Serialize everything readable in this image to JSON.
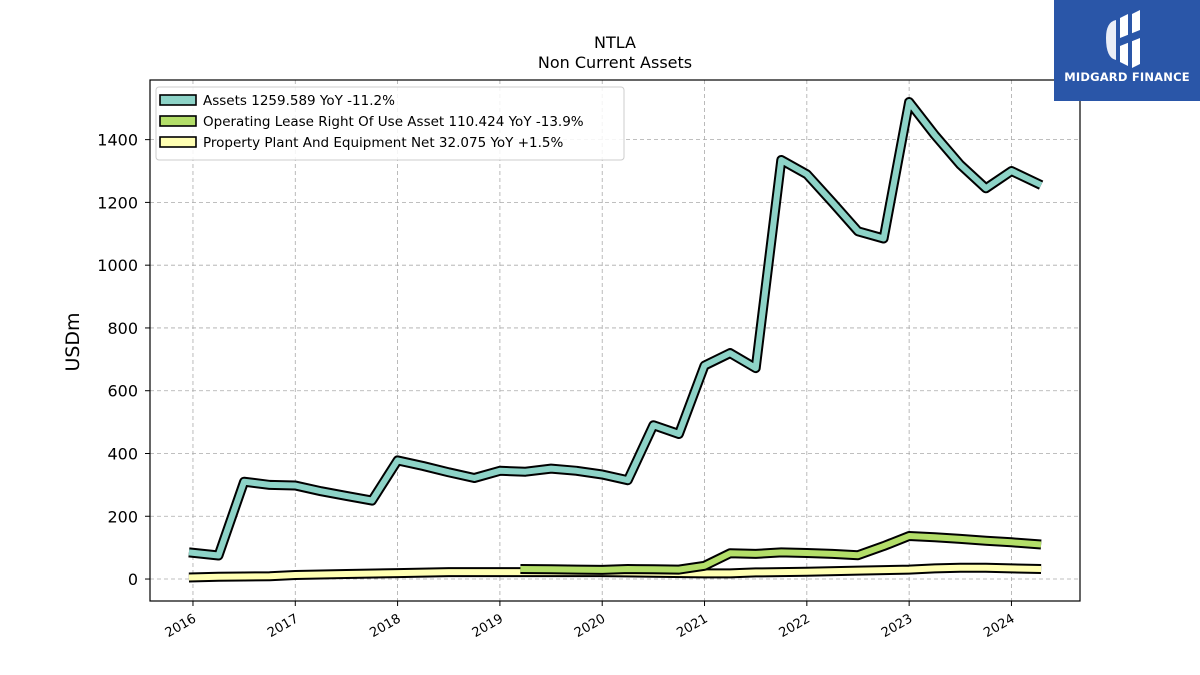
{
  "brand": {
    "name": "MIDGARD FINANCE"
  },
  "chart_data": {
    "type": "line",
    "title": "NTLA",
    "subtitle": "Non Current  Assets",
    "ylabel": "USDm",
    "xlabel": "",
    "ylim": [
      -70,
      1590
    ],
    "xlim": [
      2015.58,
      2024.67
    ],
    "yticks": [
      0,
      200,
      400,
      600,
      800,
      1000,
      1200,
      1400
    ],
    "xticks": [
      2016,
      2017,
      2018,
      2019,
      2020,
      2021,
      2022,
      2023,
      2024
    ],
    "xtick_labels": [
      "2016",
      "2017",
      "2018",
      "2019",
      "2020",
      "2021",
      "2022",
      "2023",
      "2024"
    ],
    "grid": true,
    "legend_position": "upper-left",
    "series": [
      {
        "name": "Assets",
        "legend": "Assets  1259.589 YoY -11.2%",
        "color": "#8dd3c7",
        "x": [
          2015.96,
          2016.25,
          2016.5,
          2016.75,
          2017.0,
          2017.25,
          2017.5,
          2017.75,
          2018.0,
          2018.25,
          2018.5,
          2018.75,
          2019.0,
          2019.25,
          2019.5,
          2019.75,
          2020.0,
          2020.25,
          2020.5,
          2020.75,
          2021.0,
          2021.25,
          2021.5,
          2021.75,
          2022.0,
          2022.25,
          2022.5,
          2022.75,
          2023.0,
          2023.25,
          2023.5,
          2023.75,
          2024.0,
          2024.29
        ],
        "y": [
          85,
          75,
          310,
          300,
          298,
          280,
          265,
          250,
          378,
          360,
          340,
          322,
          345,
          342,
          352,
          345,
          333,
          315,
          490,
          462,
          680,
          720,
          672,
          1335,
          1290,
          1200,
          1108,
          1085,
          1520,
          1415,
          1320,
          1245,
          1300,
          1255
        ]
      },
      {
        "name": "Operating Lease Right Of Use Asset",
        "legend": "Operating Lease Right Of Use Asset  110.424 YoY -13.9%",
        "color": "#b3de69",
        "x": [
          2019.2,
          2019.5,
          2019.75,
          2020.0,
          2020.25,
          2020.5,
          2020.75,
          2021.0,
          2021.25,
          2021.5,
          2021.75,
          2022.0,
          2022.25,
          2022.5,
          2022.75,
          2023.0,
          2023.25,
          2023.5,
          2023.75,
          2024.0,
          2024.29
        ],
        "y": [
          32,
          31,
          30,
          29,
          32,
          31,
          30,
          42,
          82,
          80,
          85,
          83,
          80,
          76,
          105,
          137,
          133,
          128,
          122,
          117,
          110
        ]
      },
      {
        "name": "Property Plant And Equipment Net",
        "legend": "Property Plant And Equipment Net  32.075 YoY +1.5%",
        "color": "#ffffb3",
        "x": [
          2015.96,
          2016.25,
          2016.5,
          2016.75,
          2017.0,
          2017.5,
          2018.0,
          2018.5,
          2019.0,
          2019.5,
          2020.0,
          2020.5,
          2021.0,
          2021.25,
          2021.5,
          2022.0,
          2022.5,
          2023.0,
          2023.25,
          2023.5,
          2023.75,
          2024.0,
          2024.29
        ],
        "y": [
          5,
          7,
          8,
          9,
          13,
          16,
          19,
          22,
          22,
          22,
          22,
          20,
          18,
          18,
          21,
          23,
          27,
          30,
          34,
          36,
          36,
          34,
          32
        ]
      }
    ]
  }
}
